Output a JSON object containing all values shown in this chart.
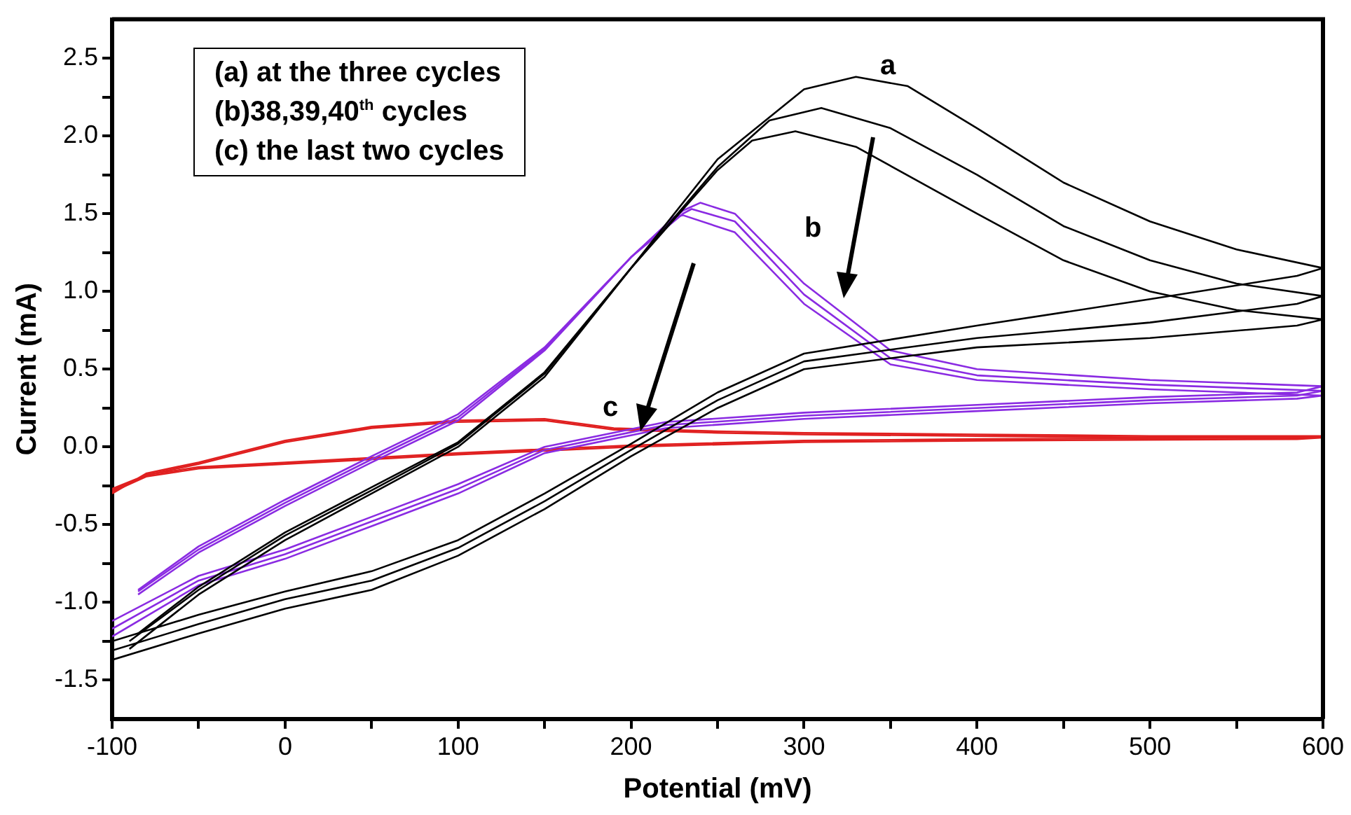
{
  "chart_data": {
    "type": "line",
    "xlabel": "Potential (mV)",
    "ylabel": "Current (mA)",
    "xlim": [
      -100,
      600
    ],
    "ylim": [
      -1.75,
      2.75
    ],
    "xticks": [
      -100,
      {
        "value": -50,
        "label": null
      },
      0,
      {
        "value": 50,
        "label": null
      },
      100,
      {
        "value": 150,
        "label": null
      },
      200,
      {
        "value": 250,
        "label": null
      },
      300,
      {
        "value": 350,
        "label": null
      },
      400,
      {
        "value": 450,
        "label": null
      },
      500,
      {
        "value": 550,
        "label": null
      },
      600
    ],
    "yticks": [
      -1.5,
      {
        "value": -1.25,
        "label": null
      },
      {
        "value": -1,
        "label": "-1.0"
      },
      {
        "value": -0.75,
        "label": null
      },
      -0.5,
      {
        "value": -0.25,
        "label": null
      },
      {
        "value": 0,
        "label": "0.0"
      },
      {
        "value": 0.25,
        "label": null
      },
      0.5,
      {
        "value": 0.75,
        "label": null
      },
      {
        "value": 1,
        "label": "1.0"
      },
      {
        "value": 1.25,
        "label": null
      },
      1.5,
      {
        "value": 1.75,
        "label": null
      },
      {
        "value": 2,
        "label": "2.0"
      },
      {
        "value": 2.25,
        "label": null
      },
      2.5
    ],
    "grid": false,
    "legend": false,
    "marker": "none",
    "line_style": "solid",
    "series": [
      {
        "color": "#000000",
        "x": [
          -90,
          -50,
          0,
          50,
          100,
          150,
          200,
          250,
          300,
          330,
          360,
          400,
          450,
          500,
          550,
          600,
          585,
          500,
          400,
          300,
          250,
          200,
          150,
          100,
          50,
          0,
          -50,
          -100
        ],
        "values": [
          -1.3,
          -0.95,
          -0.6,
          -0.3,
          0.0,
          0.45,
          1.15,
          1.85,
          2.3,
          2.38,
          2.32,
          2.05,
          1.7,
          1.45,
          1.27,
          1.15,
          1.1,
          0.95,
          0.78,
          0.6,
          0.35,
          0.02,
          -0.3,
          -0.6,
          -0.8,
          -0.93,
          -1.08,
          -1.25
        ]
      },
      {
        "color": "#000000",
        "x": [
          -90,
          -50,
          0,
          50,
          100,
          150,
          200,
          250,
          280,
          310,
          350,
          400,
          450,
          500,
          550,
          600,
          585,
          500,
          400,
          300,
          250,
          200,
          150,
          100,
          50,
          0,
          -50,
          -100
        ],
        "values": [
          -1.25,
          -0.92,
          -0.57,
          -0.28,
          0.02,
          0.47,
          1.15,
          1.8,
          2.1,
          2.18,
          2.05,
          1.75,
          1.42,
          1.2,
          1.05,
          0.97,
          0.92,
          0.8,
          0.7,
          0.55,
          0.3,
          -0.02,
          -0.35,
          -0.65,
          -0.86,
          -0.98,
          -1.14,
          -1.31
        ]
      },
      {
        "color": "#000000",
        "x": [
          -85,
          -50,
          0,
          50,
          100,
          150,
          200,
          250,
          270,
          295,
          330,
          400,
          450,
          500,
          550,
          600,
          585,
          500,
          400,
          300,
          250,
          200,
          150,
          100,
          50,
          0,
          -50,
          -100
        ],
        "values": [
          -1.2,
          -0.9,
          -0.55,
          -0.26,
          0.03,
          0.48,
          1.15,
          1.78,
          1.97,
          2.03,
          1.93,
          1.5,
          1.2,
          1.0,
          0.88,
          0.82,
          0.78,
          0.7,
          0.64,
          0.5,
          0.25,
          -0.06,
          -0.4,
          -0.7,
          -0.92,
          -1.04,
          -1.2,
          -1.37
        ]
      },
      {
        "color": "#8a2be2",
        "x": [
          -85,
          -50,
          0,
          50,
          100,
          150,
          200,
          230,
          240,
          260,
          300,
          350,
          400,
          500,
          600,
          585,
          500,
          400,
          300,
          220,
          150,
          100,
          50,
          0,
          -50,
          -100
        ],
        "values": [
          -0.95,
          -0.68,
          -0.38,
          -0.1,
          0.17,
          0.62,
          1.22,
          1.52,
          1.57,
          1.5,
          1.05,
          0.62,
          0.5,
          0.43,
          0.39,
          0.35,
          0.32,
          0.27,
          0.22,
          0.16,
          0.0,
          -0.24,
          -0.45,
          -0.66,
          -0.83,
          -1.12
        ]
      },
      {
        "color": "#8a2be2",
        "x": [
          -85,
          -50,
          0,
          50,
          100,
          150,
          200,
          230,
          235,
          260,
          300,
          350,
          400,
          500,
          600,
          585,
          500,
          400,
          300,
          220,
          150,
          100,
          50,
          0,
          -50,
          -100
        ],
        "values": [
          -0.93,
          -0.66,
          -0.36,
          -0.08,
          0.19,
          0.63,
          1.22,
          1.5,
          1.53,
          1.45,
          0.98,
          0.57,
          0.46,
          0.4,
          0.36,
          0.33,
          0.3,
          0.25,
          0.2,
          0.14,
          -0.02,
          -0.27,
          -0.48,
          -0.69,
          -0.86,
          -1.17
        ]
      },
      {
        "color": "#8a2be2",
        "x": [
          -85,
          -50,
          0,
          50,
          100,
          150,
          200,
          225,
          230,
          260,
          300,
          350,
          400,
          500,
          600,
          585,
          500,
          400,
          300,
          220,
          150,
          100,
          50,
          0,
          -50,
          -100
        ],
        "values": [
          -0.92,
          -0.64,
          -0.34,
          -0.06,
          0.21,
          0.64,
          1.22,
          1.48,
          1.49,
          1.38,
          0.92,
          0.53,
          0.43,
          0.37,
          0.33,
          0.31,
          0.28,
          0.23,
          0.18,
          0.12,
          -0.04,
          -0.3,
          -0.51,
          -0.72,
          -0.89,
          -1.22
        ]
      },
      {
        "color": "#e02020",
        "x": [
          -100,
          -80,
          -50,
          0,
          50,
          100,
          150,
          190,
          250,
          300,
          400,
          500,
          600,
          585,
          400,
          300,
          200,
          100,
          0,
          -50,
          -80,
          -100
        ],
        "values": [
          -0.3,
          -0.17,
          -0.1,
          0.04,
          0.13,
          0.17,
          0.18,
          0.12,
          0.1,
          0.09,
          0.08,
          0.07,
          0.07,
          0.06,
          0.05,
          0.04,
          0.01,
          -0.04,
          -0.1,
          -0.13,
          -0.18,
          -0.27
        ]
      },
      {
        "color": "#e02020",
        "x": [
          -100,
          -80,
          -50,
          0,
          50,
          100,
          150,
          190,
          250,
          300,
          400,
          500,
          600,
          585,
          400,
          300,
          200,
          100,
          0,
          -50,
          -80,
          -100
        ],
        "values": [
          -0.28,
          -0.18,
          -0.11,
          0.03,
          0.12,
          0.16,
          0.17,
          0.11,
          0.09,
          0.08,
          0.07,
          0.06,
          0.06,
          0.05,
          0.04,
          0.03,
          0.0,
          -0.05,
          -0.11,
          -0.14,
          -0.19,
          -0.29
        ]
      }
    ],
    "annotations": [
      "(a) at the three cycles",
      "(b)38,39,40$^{th}$ cycles",
      "(c) the last two cycles",
      "a",
      "b",
      "c"
    ]
  }
}
